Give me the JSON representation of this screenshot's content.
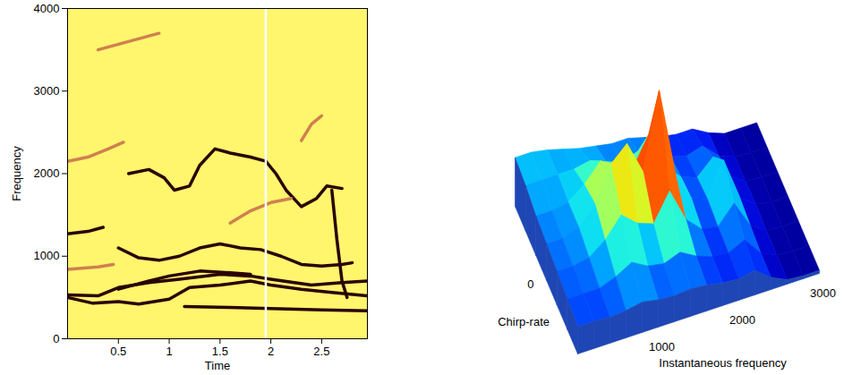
{
  "chart_data": [
    {
      "type": "line",
      "xlabel": "Time",
      "ylabel": "Frequency",
      "xlim": [
        0,
        2.95
      ],
      "xticks": [
        0.5,
        1,
        1.5,
        2,
        2.5
      ],
      "ylim": [
        0,
        4000
      ],
      "yticks": [
        0,
        1000,
        2000,
        3000,
        4000
      ],
      "vline": 1.95,
      "series": [
        {
          "color": "#2b0000",
          "x": [
            1.15,
            1.6,
            2.0,
            2.5,
            2.95
          ],
          "values": [
            390,
            380,
            365,
            350,
            340
          ]
        },
        {
          "color": "#2b0000",
          "x": [
            0,
            0.25,
            0.5,
            0.7,
            1.0,
            1.2,
            1.5,
            1.8,
            2.0,
            2.3,
            2.6,
            2.95
          ],
          "values": [
            500,
            430,
            450,
            420,
            480,
            620,
            650,
            700,
            650,
            600,
            560,
            520
          ]
        },
        {
          "color": "#2b0000",
          "x": [
            0,
            0.3,
            0.5,
            0.8,
            1.1,
            1.5,
            1.8,
            2.0,
            2.4,
            2.7,
            2.95
          ],
          "values": [
            530,
            520,
            620,
            680,
            720,
            780,
            760,
            720,
            650,
            680,
            700
          ]
        },
        {
          "color": "#2b0000",
          "x": [
            0.5,
            0.8,
            1.0,
            1.3,
            1.6,
            1.8
          ],
          "values": [
            600,
            700,
            760,
            820,
            800,
            780
          ]
        },
        {
          "color": "#2b0000",
          "x": [
            0.5,
            0.7,
            0.9,
            1.1,
            1.3,
            1.5,
            1.7,
            1.9,
            2.1,
            2.3,
            2.5,
            2.7,
            2.8
          ],
          "values": [
            1100,
            980,
            950,
            1000,
            1100,
            1150,
            1100,
            1080,
            1000,
            900,
            880,
            900,
            920
          ]
        },
        {
          "color": "#2b0000",
          "x": [
            0.6,
            0.8,
            0.95,
            1.05,
            1.2,
            1.3,
            1.45,
            1.6,
            1.8,
            1.95,
            2.05,
            2.15,
            2.3,
            2.45,
            2.55,
            2.7
          ],
          "values": [
            2000,
            2050,
            1950,
            1800,
            1850,
            2100,
            2300,
            2250,
            2200,
            2150,
            2000,
            1800,
            1600,
            1700,
            1850,
            1820
          ]
        },
        {
          "color": "#2b0000",
          "x": [
            0,
            0.2,
            0.35
          ],
          "values": [
            1270,
            1300,
            1350
          ]
        },
        {
          "color": "#2b0000",
          "x": [
            2.6,
            2.65,
            2.7,
            2.75
          ],
          "values": [
            1800,
            1200,
            700,
            500
          ]
        },
        {
          "color": "#d08050",
          "x": [
            0,
            0.2,
            0.4,
            0.55
          ],
          "values": [
            2150,
            2200,
            2300,
            2380
          ]
        },
        {
          "color": "#d08050",
          "x": [
            0,
            0.3,
            0.45
          ],
          "values": [
            840,
            870,
            900
          ]
        },
        {
          "color": "#d08050",
          "x": [
            1.6,
            1.8,
            2.0,
            2.2
          ],
          "values": [
            1400,
            1550,
            1650,
            1700
          ]
        },
        {
          "color": "#d08050",
          "x": [
            2.3,
            2.4,
            2.5
          ],
          "values": [
            2400,
            2600,
            2700
          ]
        },
        {
          "color": "#d08050",
          "x": [
            0.3,
            0.6,
            0.9
          ],
          "values": [
            3500,
            3600,
            3700
          ]
        }
      ]
    },
    {
      "type": "surface",
      "xlabel": "Instantaneous frequency",
      "ylabel": "Chirp-rate",
      "xlim": [
        0,
        3000
      ],
      "xticks": [
        1000,
        2000,
        3000
      ],
      "ylim": [
        -3,
        3
      ],
      "yticks": [
        0
      ],
      "zlim": [
        0,
        1
      ],
      "x": [
        0,
        200,
        400,
        600,
        800,
        1000,
        1200,
        1400,
        1600,
        1800,
        2000,
        2200,
        2400,
        2600,
        2800,
        3000
      ],
      "y": [
        -3,
        -2,
        -1,
        0,
        1,
        2,
        3
      ],
      "z": [
        [
          0.18,
          0.18,
          0.17,
          0.18,
          0.2,
          0.18,
          0.17,
          0.18,
          0.17,
          0.15,
          0.14,
          0.16,
          0.08,
          0.03,
          0.02,
          0.02
        ],
        [
          0.2,
          0.2,
          0.2,
          0.24,
          0.3,
          0.24,
          0.22,
          0.26,
          0.2,
          0.16,
          0.15,
          0.2,
          0.08,
          0.03,
          0.02,
          0.02
        ],
        [
          0.22,
          0.22,
          0.24,
          0.32,
          0.45,
          0.36,
          0.32,
          0.5,
          0.28,
          0.18,
          0.16,
          0.28,
          0.1,
          0.03,
          0.02,
          0.02
        ],
        [
          0.24,
          0.24,
          0.28,
          0.4,
          0.62,
          0.72,
          0.5,
          1.0,
          0.42,
          0.22,
          0.18,
          0.4,
          0.12,
          0.04,
          0.02,
          0.02
        ],
        [
          0.26,
          0.26,
          0.28,
          0.36,
          0.48,
          0.42,
          0.36,
          0.55,
          0.3,
          0.2,
          0.16,
          0.26,
          0.1,
          0.03,
          0.02,
          0.02
        ],
        [
          0.3,
          0.3,
          0.3,
          0.3,
          0.32,
          0.28,
          0.24,
          0.28,
          0.22,
          0.17,
          0.14,
          0.17,
          0.07,
          0.03,
          0.02,
          0.02
        ],
        [
          0.32,
          0.32,
          0.3,
          0.27,
          0.24,
          0.22,
          0.2,
          0.2,
          0.17,
          0.14,
          0.12,
          0.12,
          0.06,
          0.02,
          0.02,
          0.02
        ]
      ]
    }
  ]
}
